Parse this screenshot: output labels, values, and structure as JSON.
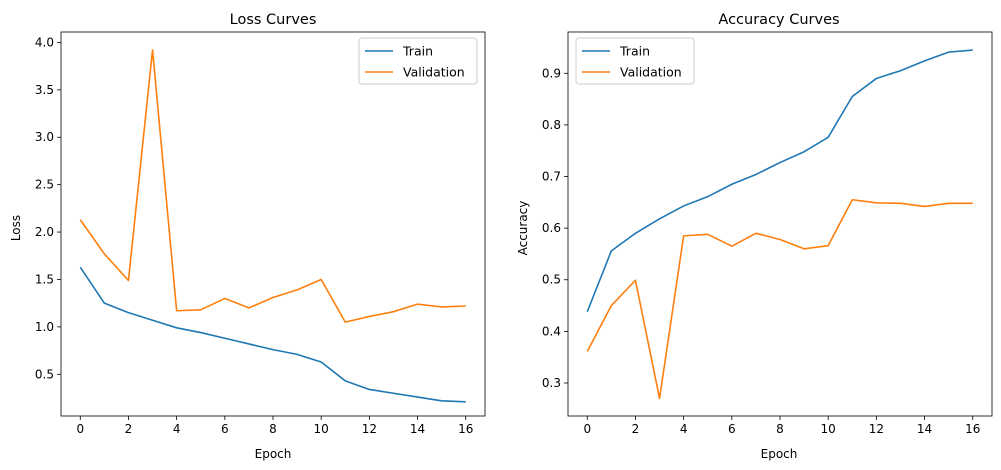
{
  "chart_data": [
    {
      "type": "line",
      "title": "Loss Curves",
      "xlabel": "Epoch",
      "ylabel": "Loss",
      "xlim": [
        -0.8,
        16.8
      ],
      "ylim": [
        0.06,
        4.11
      ],
      "xticks": [
        0,
        2,
        4,
        6,
        8,
        10,
        12,
        14,
        16
      ],
      "yticks": [
        0.5,
        1.0,
        1.5,
        2.0,
        2.5,
        3.0,
        3.5,
        4.0
      ],
      "ytick_labels": [
        "0.5",
        "1.0",
        "1.5",
        "2.0",
        "2.5",
        "3.0",
        "3.5",
        "4.0"
      ],
      "legend": "top-right",
      "x": [
        0,
        1,
        2,
        3,
        4,
        5,
        6,
        7,
        8,
        9,
        10,
        11,
        12,
        13,
        14,
        15,
        16
      ],
      "series": [
        {
          "name": "Train",
          "color": "#1f77b4",
          "values": [
            1.63,
            1.25,
            1.15,
            1.07,
            0.99,
            0.94,
            0.88,
            0.82,
            0.76,
            0.71,
            0.63,
            0.43,
            0.34,
            0.3,
            0.26,
            0.22,
            0.21
          ]
        },
        {
          "name": "Validation",
          "color": "#ff7f0e",
          "values": [
            2.13,
            1.77,
            1.49,
            3.92,
            1.17,
            1.18,
            1.3,
            1.2,
            1.31,
            1.39,
            1.5,
            1.05,
            1.11,
            1.16,
            1.24,
            1.21,
            1.22
          ]
        }
      ]
    },
    {
      "type": "line",
      "title": "Accuracy Curves",
      "xlabel": "Epoch",
      "ylabel": "Accuracy",
      "xlim": [
        -0.8,
        16.8
      ],
      "ylim": [
        0.236,
        0.98
      ],
      "xticks": [
        0,
        2,
        4,
        6,
        8,
        10,
        12,
        14,
        16
      ],
      "yticks": [
        0.3,
        0.4,
        0.5,
        0.6,
        0.7,
        0.8,
        0.9
      ],
      "ytick_labels": [
        "0.3",
        "0.4",
        "0.5",
        "0.6",
        "0.7",
        "0.8",
        "0.9"
      ],
      "legend": "top-left",
      "x": [
        0,
        1,
        2,
        3,
        4,
        5,
        6,
        7,
        8,
        9,
        10,
        11,
        12,
        13,
        14,
        15,
        16
      ],
      "series": [
        {
          "name": "Train",
          "color": "#1f77b4",
          "values": [
            0.438,
            0.556,
            0.59,
            0.618,
            0.643,
            0.661,
            0.685,
            0.704,
            0.727,
            0.748,
            0.776,
            0.855,
            0.89,
            0.905,
            0.924,
            0.941,
            0.945
          ]
        },
        {
          "name": "Validation",
          "color": "#ff7f0e",
          "values": [
            0.361,
            0.45,
            0.499,
            0.27,
            0.585,
            0.588,
            0.565,
            0.59,
            0.578,
            0.56,
            0.566,
            0.655,
            0.649,
            0.648,
            0.642,
            0.648,
            0.648
          ]
        }
      ]
    }
  ]
}
